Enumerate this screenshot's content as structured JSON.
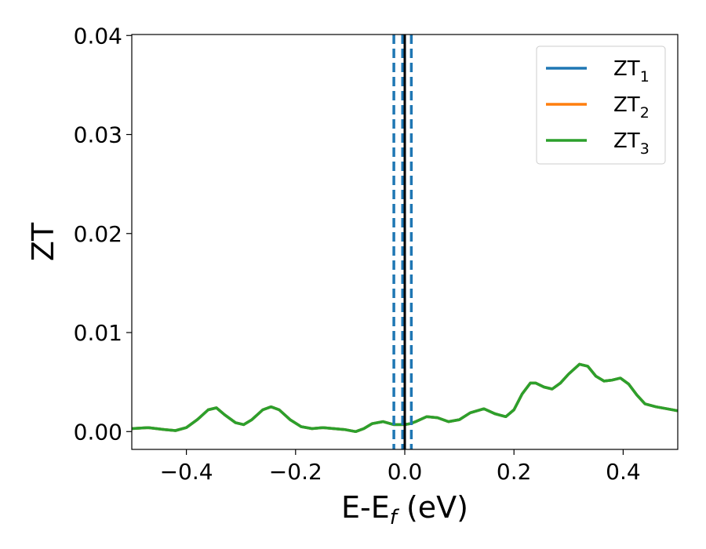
{
  "chart_data": {
    "type": "line",
    "xlabel": "E-E",
    "xlabel_subscript": "f",
    "xlabel_unit": " (eV)",
    "ylabel": "ZT",
    "xlim": [
      -0.5,
      0.5
    ],
    "ylim": [
      -0.0018,
      0.0401
    ],
    "x_ticks": [
      {
        "value": -0.4,
        "label": "−0.4"
      },
      {
        "value": -0.2,
        "label": "−0.2"
      },
      {
        "value": 0.0,
        "label": "0.0"
      },
      {
        "value": 0.2,
        "label": "0.2"
      },
      {
        "value": 0.4,
        "label": "0.4"
      }
    ],
    "y_ticks": [
      {
        "value": 0.0,
        "label": "0.00"
      },
      {
        "value": 0.01,
        "label": "0.01"
      },
      {
        "value": 0.02,
        "label": "0.02"
      },
      {
        "value": 0.03,
        "label": "0.03"
      },
      {
        "value": 0.04,
        "label": "0.04"
      }
    ],
    "grid": false,
    "legend": {
      "placement": "top-right",
      "entries": [
        {
          "base": "ZT",
          "sub": "1",
          "color": "#1f77b4"
        },
        {
          "base": "ZT",
          "sub": "2",
          "color": "#ff7f0e"
        },
        {
          "base": "ZT",
          "sub": "3",
          "color": "#2ca02c"
        }
      ]
    },
    "series": [
      {
        "name": "ZT1",
        "color": "#1f77b4",
        "x": [
          -0.5,
          -0.47,
          -0.44,
          -0.42,
          -0.4,
          -0.38,
          -0.36,
          -0.345,
          -0.33,
          -0.31,
          -0.295,
          -0.28,
          -0.26,
          -0.245,
          -0.23,
          -0.21,
          -0.19,
          -0.17,
          -0.15,
          -0.13,
          -0.11,
          -0.09,
          -0.075,
          -0.06,
          -0.04,
          -0.02,
          0.0,
          0.01,
          0.02,
          0.04,
          0.06,
          0.08,
          0.1,
          0.12,
          0.145,
          0.165,
          0.185,
          0.2,
          0.215,
          0.23,
          0.24,
          0.255,
          0.27,
          0.285,
          0.3,
          0.32,
          0.335,
          0.35,
          0.365,
          0.38,
          0.395,
          0.41,
          0.425,
          0.44,
          0.46,
          0.48,
          0.5
        ],
        "y": [
          0.0003,
          0.0004,
          0.0002,
          0.0001,
          0.0004,
          0.0012,
          0.0022,
          0.0024,
          0.0017,
          0.0009,
          0.0007,
          0.0012,
          0.0022,
          0.0025,
          0.0022,
          0.0012,
          0.0005,
          0.0003,
          0.0004,
          0.0003,
          0.0002,
          0.0,
          0.0003,
          0.0008,
          0.001,
          0.0007,
          0.0007,
          0.0008,
          0.001,
          0.0015,
          0.0014,
          0.001,
          0.0012,
          0.0019,
          0.0023,
          0.0018,
          0.0015,
          0.0022,
          0.0038,
          0.0049,
          0.0049,
          0.0045,
          0.0043,
          0.0049,
          0.0058,
          0.0068,
          0.0066,
          0.0056,
          0.0051,
          0.0052,
          0.0054,
          0.0048,
          0.0037,
          0.0028,
          0.0025,
          0.0023,
          0.0021
        ]
      },
      {
        "name": "ZT2",
        "color": "#ff7f0e",
        "x": [
          -0.5,
          -0.47,
          -0.44,
          -0.42,
          -0.4,
          -0.38,
          -0.36,
          -0.345,
          -0.33,
          -0.31,
          -0.295,
          -0.28,
          -0.26,
          -0.245,
          -0.23,
          -0.21,
          -0.19,
          -0.17,
          -0.15,
          -0.13,
          -0.11,
          -0.09,
          -0.075,
          -0.06,
          -0.04,
          -0.02,
          0.0,
          0.01,
          0.02,
          0.04,
          0.06,
          0.08,
          0.1,
          0.12,
          0.145,
          0.165,
          0.185,
          0.2,
          0.215,
          0.23,
          0.24,
          0.255,
          0.27,
          0.285,
          0.3,
          0.32,
          0.335,
          0.35,
          0.365,
          0.38,
          0.395,
          0.41,
          0.425,
          0.44,
          0.46,
          0.48,
          0.5
        ],
        "y": [
          0.0003,
          0.0004,
          0.0002,
          0.0001,
          0.0004,
          0.0012,
          0.0022,
          0.0024,
          0.0017,
          0.0009,
          0.0007,
          0.0012,
          0.0022,
          0.0025,
          0.0022,
          0.0012,
          0.0005,
          0.0003,
          0.0004,
          0.0003,
          0.0002,
          0.0,
          0.0003,
          0.0008,
          0.001,
          0.0007,
          0.0007,
          0.0008,
          0.001,
          0.0015,
          0.0014,
          0.001,
          0.0012,
          0.0019,
          0.0023,
          0.0018,
          0.0015,
          0.0022,
          0.0038,
          0.0049,
          0.0049,
          0.0045,
          0.0043,
          0.0049,
          0.0058,
          0.0068,
          0.0066,
          0.0056,
          0.0051,
          0.0052,
          0.0054,
          0.0048,
          0.0037,
          0.0028,
          0.0025,
          0.0023,
          0.0021
        ]
      },
      {
        "name": "ZT3",
        "color": "#2ca02c",
        "x": [
          -0.5,
          -0.47,
          -0.44,
          -0.42,
          -0.4,
          -0.38,
          -0.36,
          -0.345,
          -0.33,
          -0.31,
          -0.295,
          -0.28,
          -0.26,
          -0.245,
          -0.23,
          -0.21,
          -0.19,
          -0.17,
          -0.15,
          -0.13,
          -0.11,
          -0.09,
          -0.075,
          -0.06,
          -0.04,
          -0.02,
          0.0,
          0.01,
          0.02,
          0.04,
          0.06,
          0.08,
          0.1,
          0.12,
          0.145,
          0.165,
          0.185,
          0.2,
          0.215,
          0.23,
          0.24,
          0.255,
          0.27,
          0.285,
          0.3,
          0.32,
          0.335,
          0.35,
          0.365,
          0.38,
          0.395,
          0.41,
          0.425,
          0.44,
          0.46,
          0.48,
          0.5
        ],
        "y": [
          0.0003,
          0.0004,
          0.0002,
          0.0001,
          0.0004,
          0.0012,
          0.0022,
          0.0024,
          0.0017,
          0.0009,
          0.0007,
          0.0012,
          0.0022,
          0.0025,
          0.0022,
          0.0012,
          0.0005,
          0.0003,
          0.0004,
          0.0003,
          0.0002,
          0.0,
          0.0003,
          0.0008,
          0.001,
          0.0007,
          0.0007,
          0.0008,
          0.001,
          0.0015,
          0.0014,
          0.001,
          0.0012,
          0.0019,
          0.0023,
          0.0018,
          0.0015,
          0.0022,
          0.0038,
          0.0049,
          0.0049,
          0.0045,
          0.0043,
          0.0049,
          0.0058,
          0.0068,
          0.0066,
          0.0056,
          0.0051,
          0.0052,
          0.0054,
          0.0048,
          0.0037,
          0.0028,
          0.0025,
          0.0023,
          0.0021
        ]
      }
    ],
    "vertical_lines": [
      {
        "x": -0.02,
        "style": "dashed",
        "color": "#1f77b4"
      },
      {
        "x": -0.004,
        "style": "dashed",
        "color": "#1f77b4"
      },
      {
        "x": 0.012,
        "style": "dashed",
        "color": "#1f77b4"
      },
      {
        "x": 0.0,
        "style": "solid",
        "color": "#000000"
      }
    ]
  }
}
